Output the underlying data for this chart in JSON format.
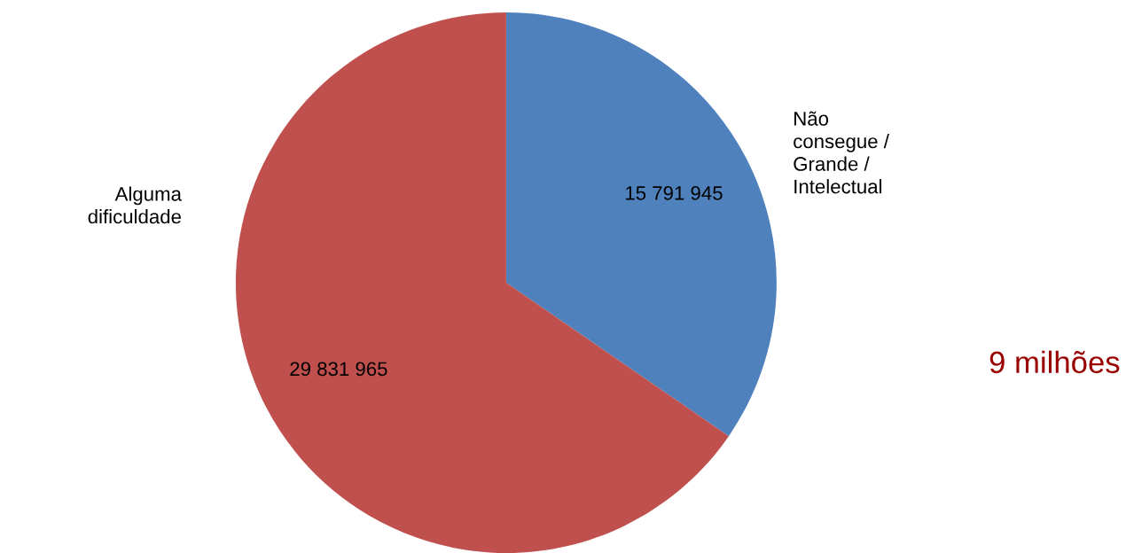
{
  "chart_data": {
    "type": "pie",
    "categories": [
      "Não\nconsegue /\nGrande /\nIntelectual",
      "Alguma\ndificuldade"
    ],
    "values": [
      15791945,
      29831965
    ],
    "colors": [
      "#4f81bd",
      "#c0504d"
    ],
    "value_labels": [
      "15 791 945",
      "29 831 965"
    ],
    "annotations": [
      "9 milhões"
    ],
    "legend": false
  }
}
